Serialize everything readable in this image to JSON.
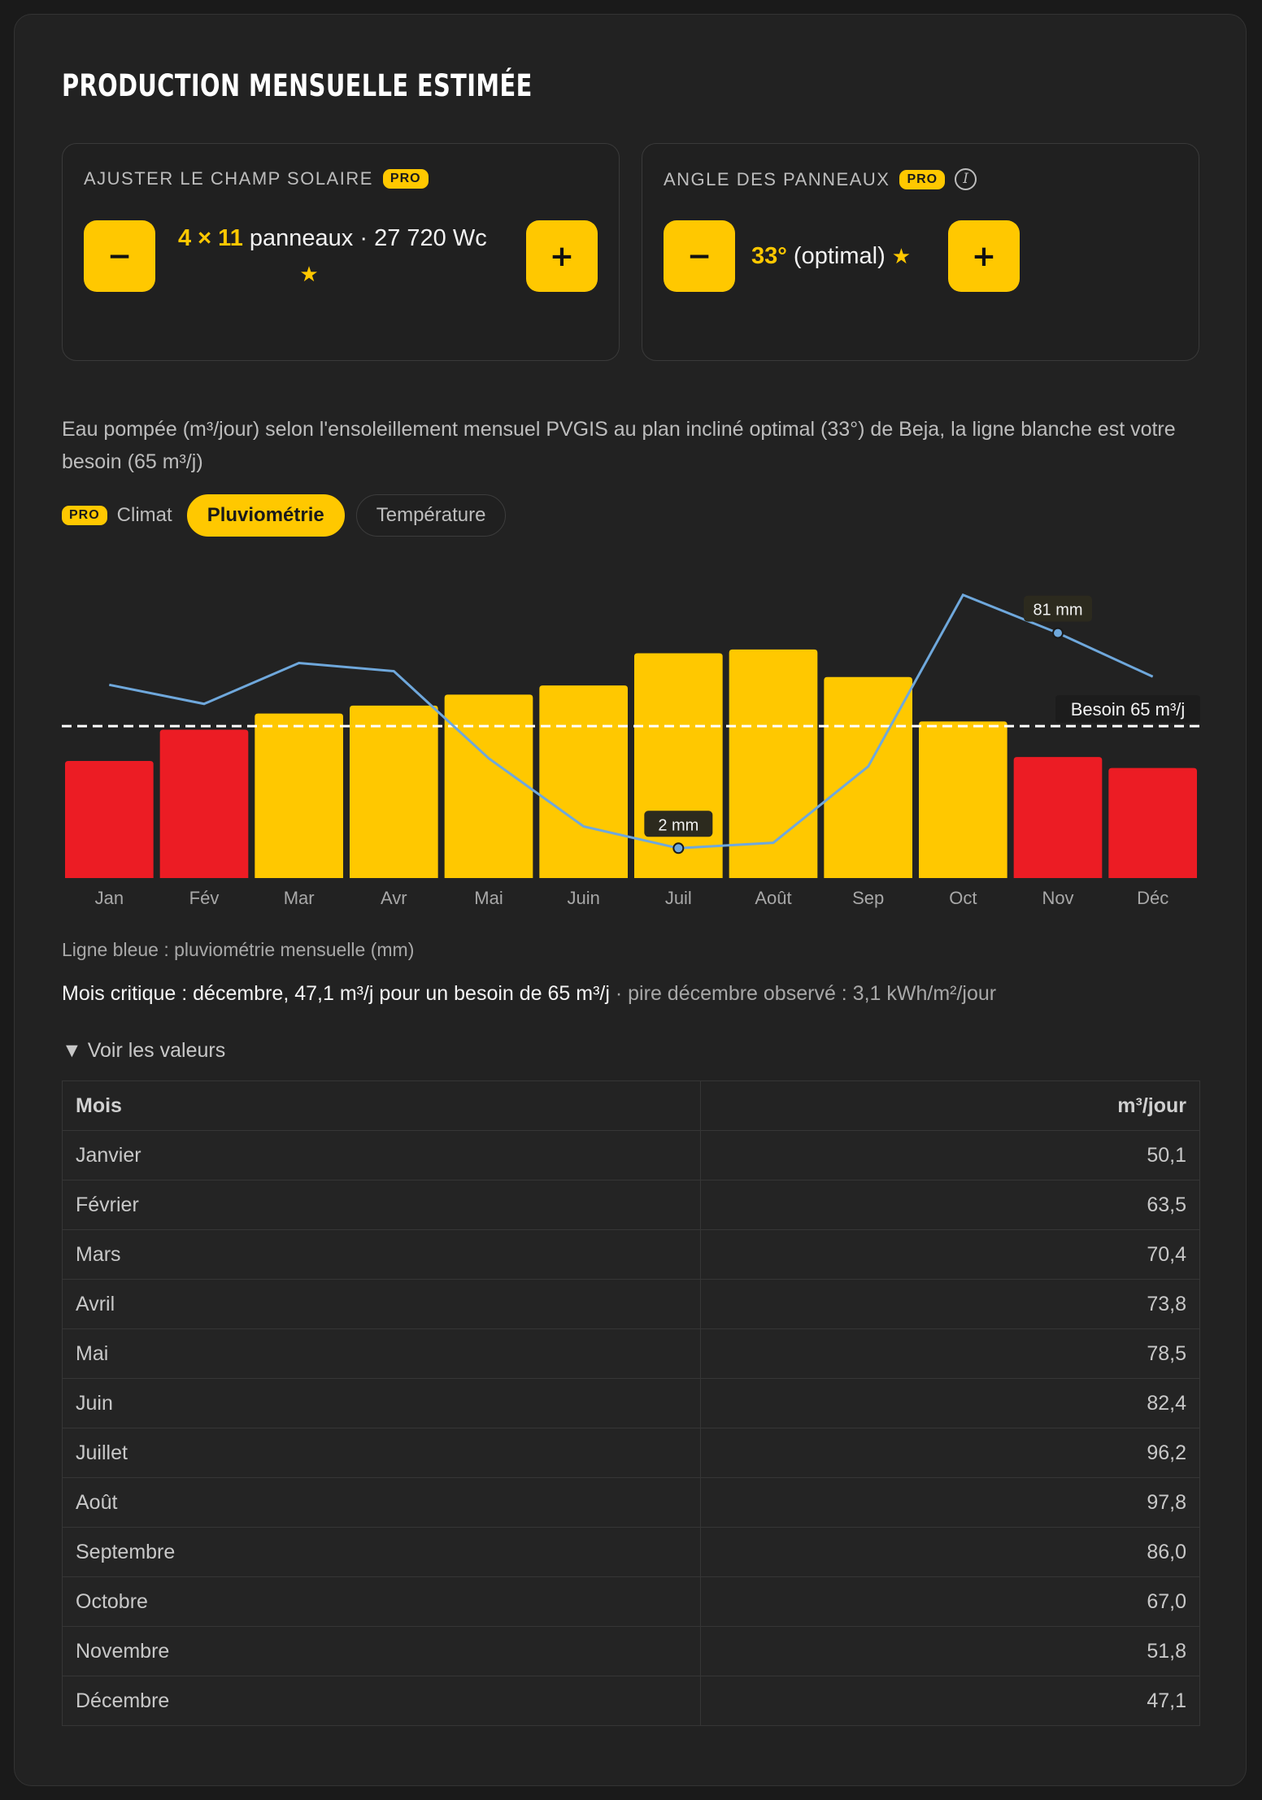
{
  "title": "Production mensuelle estimée",
  "solar_field": {
    "label": "Ajuster le champ solaire",
    "badge": "PRO",
    "count_text": "4 × 11",
    "rest_text": "panneaux · 27 720 Wc",
    "star": "★",
    "minus": "−",
    "plus": "+"
  },
  "panel_angle": {
    "label": "Angle des panneaux",
    "badge": "PRO",
    "info": "i",
    "angle_text": "33°",
    "note_text": "(optimal)",
    "star": "★",
    "minus": "−",
    "plus": "+"
  },
  "description": "Eau pompée (m³/jour) selon l'ensoleillement mensuel PVGIS au plan incliné optimal (33°) de Beja, la ligne blanche est votre besoin (65 m³/j)",
  "tabs": {
    "badge": "PRO",
    "label": "Climat",
    "items": [
      "Pluviométrie",
      "Température"
    ],
    "active": "Pluviométrie"
  },
  "colors": {
    "above_need": "#ffc800",
    "below_need": "#ec1c24",
    "rain_line": "#6fa8dc",
    "need_line": "#ffffff"
  },
  "chart_data": {
    "type": "bar",
    "categories": [
      "Jan",
      "Fév",
      "Mar",
      "Avr",
      "Mai",
      "Juin",
      "Juil",
      "Août",
      "Sep",
      "Oct",
      "Nov",
      "Déc"
    ],
    "series": [
      {
        "values": [
          50.1,
          63.5,
          70.4,
          73.8,
          78.5,
          82.4,
          96.2,
          97.8,
          86.0,
          67.0,
          51.8,
          47.1
        ]
      }
    ],
    "rain_mm": [
      62,
      55,
      70,
      67,
      35,
      10,
      2,
      4,
      32,
      95,
      81,
      65
    ],
    "need": 65,
    "need_label": "Besoin 65 m³/j",
    "annotations": [
      {
        "month": "Nov",
        "text": "81 mm"
      },
      {
        "month": "Juil",
        "text": "2 mm"
      }
    ],
    "ylim": [
      0,
      115
    ],
    "grid": false
  },
  "legend_note": "Ligne bleue : pluviométrie mensuelle (mm)",
  "critical": {
    "main": "Mois critique : décembre, 47,1 m³/j pour un besoin de 65 m³/j",
    "extra": " · pire décembre observé : 3,1 kWh/m²/jour"
  },
  "details_label": "▼ Voir les valeurs",
  "table": {
    "headers": [
      "Mois",
      "m³/jour"
    ],
    "rows": [
      [
        "Janvier",
        "50,1"
      ],
      [
        "Février",
        "63,5"
      ],
      [
        "Mars",
        "70,4"
      ],
      [
        "Avril",
        "73,8"
      ],
      [
        "Mai",
        "78,5"
      ],
      [
        "Juin",
        "82,4"
      ],
      [
        "Juillet",
        "96,2"
      ],
      [
        "Août",
        "97,8"
      ],
      [
        "Septembre",
        "86,0"
      ],
      [
        "Octobre",
        "67,0"
      ],
      [
        "Novembre",
        "51,8"
      ],
      [
        "Décembre",
        "47,1"
      ]
    ]
  }
}
